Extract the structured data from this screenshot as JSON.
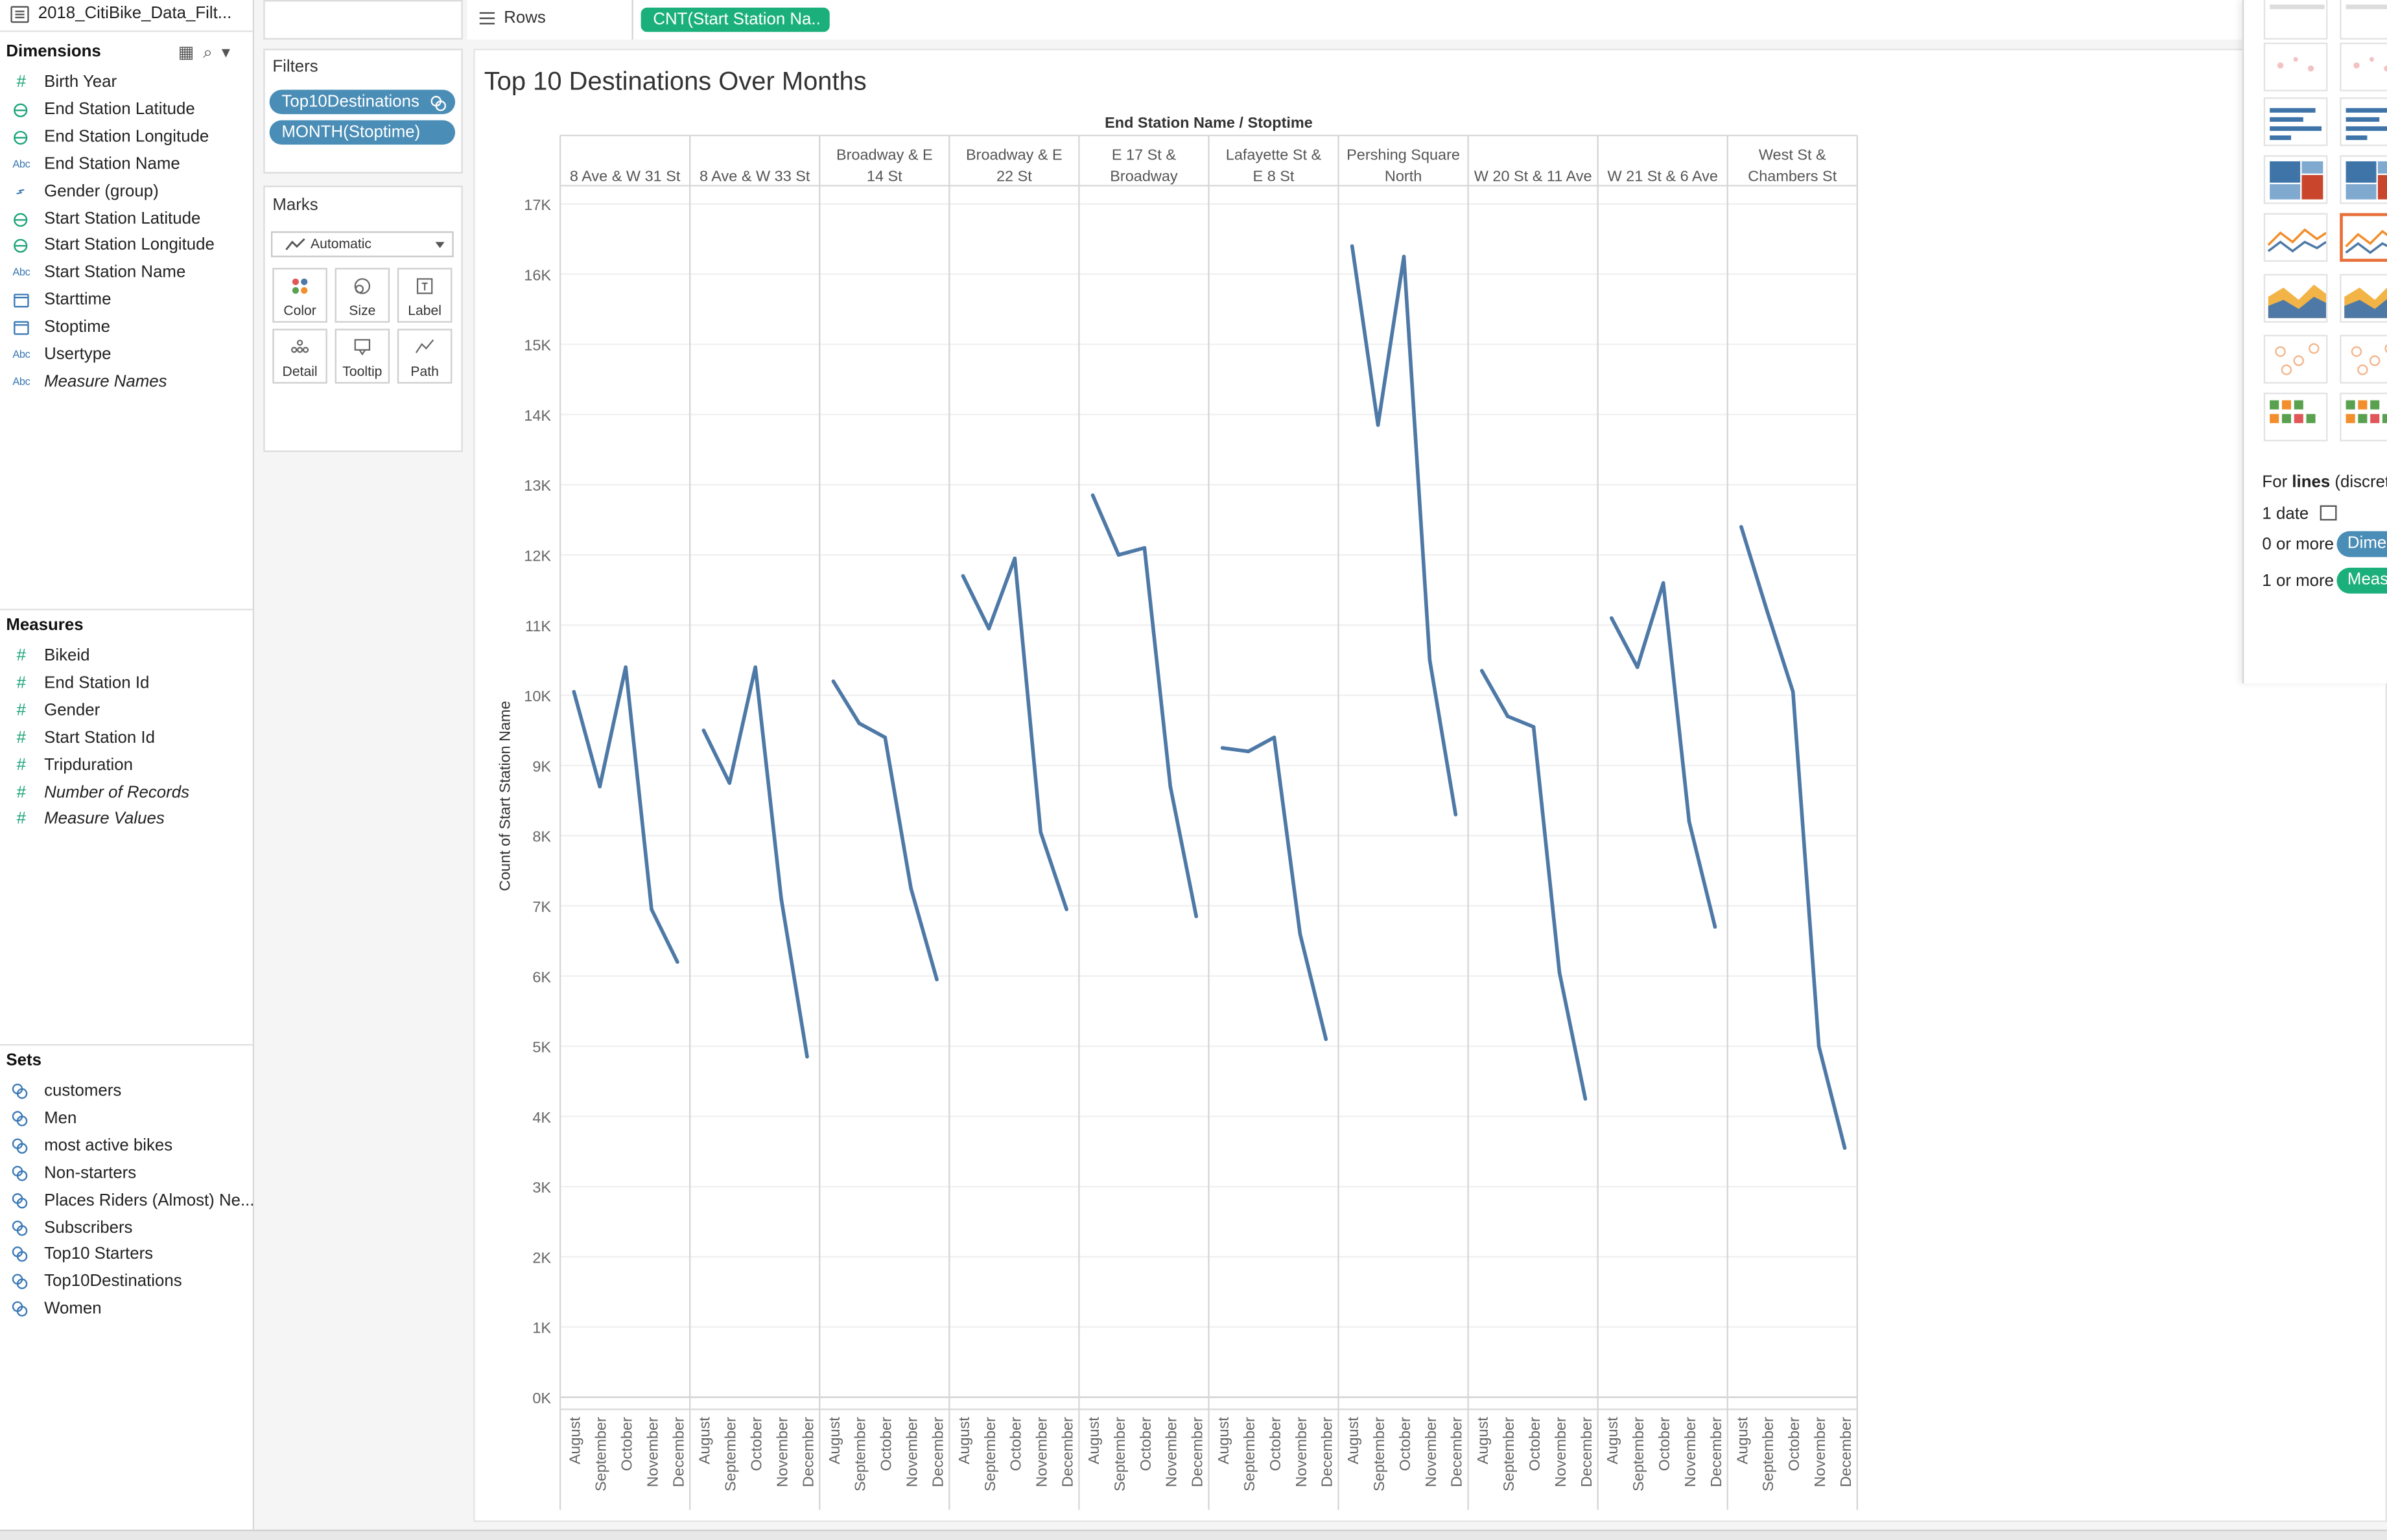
{
  "datasource": {
    "name": "2018_CitiBike_Data_Filt..."
  },
  "dimensions": {
    "header": "Dimensions",
    "items": [
      {
        "name": "Birth Year",
        "icon": "hash-icon",
        "italic": false
      },
      {
        "name": "End Station Latitude",
        "icon": "globe-icon",
        "italic": false
      },
      {
        "name": "End Station Longitude",
        "icon": "globe-icon",
        "italic": false
      },
      {
        "name": "End Station Name",
        "icon": "abc-icon",
        "italic": false
      },
      {
        "name": "Gender (group)",
        "icon": "paperclip-icon",
        "italic": false
      },
      {
        "name": "Start Station Latitude",
        "icon": "globe-icon",
        "italic": false
      },
      {
        "name": "Start Station Longitude",
        "icon": "globe-icon",
        "italic": false
      },
      {
        "name": "Start Station Name",
        "icon": "abc-icon",
        "italic": false
      },
      {
        "name": "Starttime",
        "icon": "calendar-icon",
        "italic": false
      },
      {
        "name": "Stoptime",
        "icon": "calendar-icon",
        "italic": false
      },
      {
        "name": "Usertype",
        "icon": "abc-icon",
        "italic": false
      },
      {
        "name": "Measure Names",
        "icon": "abc-icon",
        "italic": true
      }
    ]
  },
  "measures": {
    "header": "Measures",
    "items": [
      {
        "name": "Bikeid",
        "icon": "hash-icon",
        "italic": false
      },
      {
        "name": "End Station Id",
        "icon": "hash-icon",
        "italic": false
      },
      {
        "name": "Gender",
        "icon": "hash-icon",
        "italic": false
      },
      {
        "name": "Start Station Id",
        "icon": "hash-icon",
        "italic": false
      },
      {
        "name": "Tripduration",
        "icon": "hash-icon",
        "italic": false
      },
      {
        "name": "Number of Records",
        "icon": "hash-icon",
        "italic": true
      },
      {
        "name": "Measure Values",
        "icon": "hash-icon",
        "italic": true
      }
    ]
  },
  "sets": {
    "header": "Sets",
    "items": [
      {
        "name": "customers",
        "icon": "set-icon"
      },
      {
        "name": "Men",
        "icon": "set-icon"
      },
      {
        "name": "most active bikes",
        "icon": "set-icon"
      },
      {
        "name": "Non-starters",
        "icon": "set-icon"
      },
      {
        "name": "Places Riders (Almost) Ne...",
        "icon": "set-icon"
      },
      {
        "name": "Subscribers",
        "icon": "set-icon"
      },
      {
        "name": "Top10 Starters",
        "icon": "set-icon"
      },
      {
        "name": "Top10Destinations",
        "icon": "set-icon"
      },
      {
        "name": "Women",
        "icon": "set-icon"
      }
    ]
  },
  "filters": {
    "title": "Filters",
    "pills": [
      "Top10Destinations",
      "MONTH(Stoptime)"
    ]
  },
  "marks": {
    "title": "Marks",
    "type": "Automatic",
    "buttons": [
      "Color",
      "Size",
      "Label",
      "Detail",
      "Tooltip",
      "Path"
    ]
  },
  "rows": {
    "label": "Rows",
    "pill": "CNT(Start Station Na.."
  },
  "show_me": {
    "lines_text_prefix": "For ",
    "lines_text_bold": "lines",
    "lines_text_suffix": " (discrete",
    "req1": "1 date",
    "req2": "0 or more",
    "req2_pill": "Dime",
    "req3": "1 or more",
    "req3_pill": "Meas"
  },
  "colors": {
    "line": "#4e79a7",
    "dimension_pill": "#4a8db6",
    "measure_pill": "#1bb07b",
    "selected_thumb": "#e8703a"
  },
  "chart_data": {
    "type": "line",
    "title": "Top 10 Destinations Over Months",
    "column_header": "End Station Name  /  Stoptime",
    "ylabel": "Count of Start Station Name",
    "ylim": [
      0,
      17000
    ],
    "yticks": [
      "0K",
      "1K",
      "2K",
      "3K",
      "4K",
      "5K",
      "6K",
      "7K",
      "8K",
      "9K",
      "10K",
      "11K",
      "12K",
      "13K",
      "14K",
      "15K",
      "16K",
      "17K"
    ],
    "months": [
      "August",
      "September",
      "October",
      "November",
      "December"
    ],
    "grid": true,
    "panels": [
      {
        "name": "8 Ave & W 31 St",
        "values": [
          10050,
          8700,
          10400,
          6950,
          6200
        ]
      },
      {
        "name": "8 Ave & W 33 St",
        "values": [
          9500,
          8750,
          10400,
          7100,
          4850
        ]
      },
      {
        "name": "Broadway & E 14 St",
        "values": [
          10200,
          9600,
          9400,
          7250,
          5950
        ]
      },
      {
        "name": "Broadway & E 22 St",
        "values": [
          11700,
          10950,
          11950,
          8050,
          6950
        ]
      },
      {
        "name": "E 17 St & Broadway",
        "values": [
          12850,
          12000,
          12100,
          8700,
          6850
        ]
      },
      {
        "name": "Lafayette St & E 8 St",
        "values": [
          9250,
          9200,
          9400,
          6600,
          5100
        ]
      },
      {
        "name": "Pershing Square North",
        "values": [
          16400,
          13850,
          16250,
          10500,
          8300
        ]
      },
      {
        "name": "W 20 St & 11 Ave",
        "values": [
          10350,
          9700,
          9550,
          6050,
          4250
        ]
      },
      {
        "name": "W 21 St & 6 Ave",
        "values": [
          11100,
          10400,
          11600,
          8200,
          6700
        ]
      },
      {
        "name": "West St & Chambers St",
        "values": [
          12400,
          11200,
          10050,
          5000,
          3550
        ]
      }
    ]
  }
}
